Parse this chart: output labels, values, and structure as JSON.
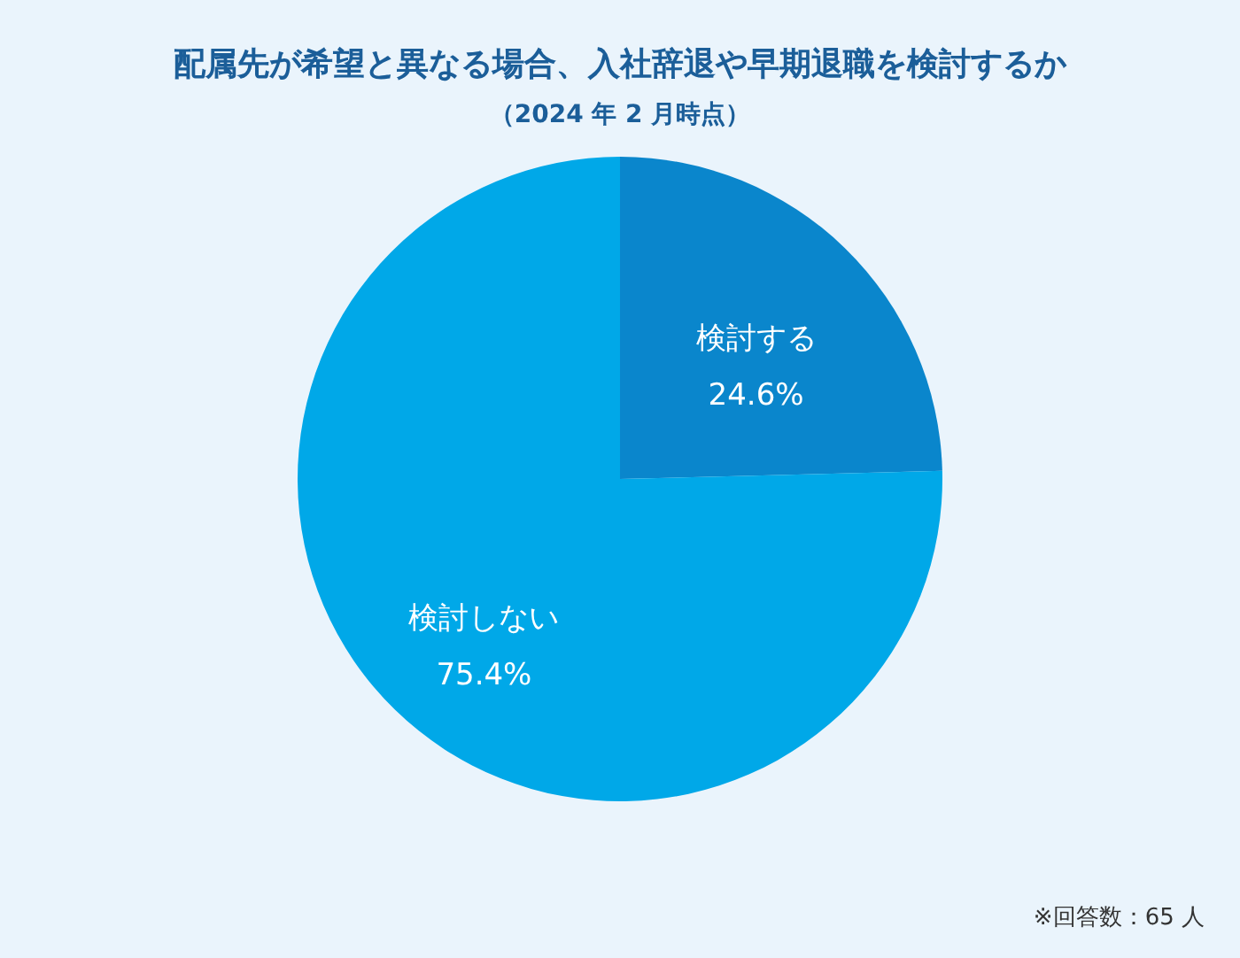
{
  "chart_data": {
    "type": "pie",
    "title": "配属先が希望と異なる場合、入社辞退や早期退職を検討するか",
    "subtitle": "（2024 年 2 月時点）",
    "categories": [
      "検討する",
      "検討しない"
    ],
    "values": [
      24.6,
      75.4
    ],
    "value_labels": [
      "24.6%",
      "75.4%"
    ],
    "colors": [
      "#0a86cc",
      "#00a8e8"
    ],
    "annotations": [
      "※回答数：65 人"
    ]
  }
}
